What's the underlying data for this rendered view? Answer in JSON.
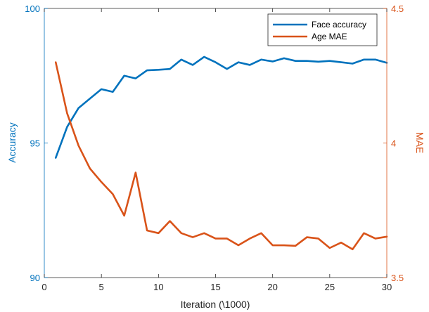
{
  "chart_data": {
    "type": "line",
    "xlabel": "Iteration (\\1000)",
    "ylabel_left": "Accuracy",
    "ylabel_right": "MAE",
    "xlim": [
      0,
      30
    ],
    "ylim_left": [
      90,
      100
    ],
    "ylim_right": [
      3.5,
      4.5
    ],
    "x_ticks": [
      0,
      5,
      10,
      15,
      20,
      25,
      30
    ],
    "y_left_ticks": [
      90,
      95,
      100
    ],
    "y_right_ticks": [
      3.5,
      4,
      4.5
    ],
    "grid": false,
    "legend_position": "top-right",
    "colors": {
      "left_axis": "#0072BD",
      "right_axis": "#D95319"
    },
    "series": [
      {
        "name": "Face accuracy",
        "axis": "left",
        "color": "#0072BD",
        "x": [
          1,
          2,
          3,
          4,
          5,
          6,
          7,
          8,
          9,
          10,
          11,
          12,
          13,
          14,
          15,
          16,
          17,
          18,
          19,
          20,
          21,
          22,
          23,
          24,
          25,
          26,
          27,
          28,
          29,
          30
        ],
        "values": [
          94.45,
          95.6,
          96.3,
          96.65,
          97.0,
          96.9,
          97.5,
          97.4,
          97.7,
          97.72,
          97.75,
          98.1,
          97.9,
          98.2,
          98.0,
          97.75,
          98.0,
          97.9,
          98.1,
          98.03,
          98.15,
          98.05,
          98.05,
          98.02,
          98.05,
          98.0,
          97.95,
          98.1,
          98.1,
          97.98
        ]
      },
      {
        "name": "Age MAE",
        "axis": "right",
        "color": "#D95319",
        "x": [
          1,
          2,
          3,
          4,
          5,
          6,
          7,
          8,
          9,
          10,
          11,
          12,
          13,
          14,
          15,
          16,
          17,
          18,
          19,
          20,
          21,
          22,
          23,
          24,
          25,
          26,
          27,
          28,
          29,
          30
        ],
        "values": [
          4.3,
          4.11,
          3.99,
          3.905,
          3.855,
          3.81,
          3.73,
          3.89,
          3.675,
          3.665,
          3.71,
          3.665,
          3.65,
          3.665,
          3.645,
          3.645,
          3.62,
          3.645,
          3.665,
          3.62,
          3.62,
          3.618,
          3.65,
          3.645,
          3.61,
          3.63,
          3.605,
          3.665,
          3.645,
          3.652
        ]
      }
    ]
  }
}
